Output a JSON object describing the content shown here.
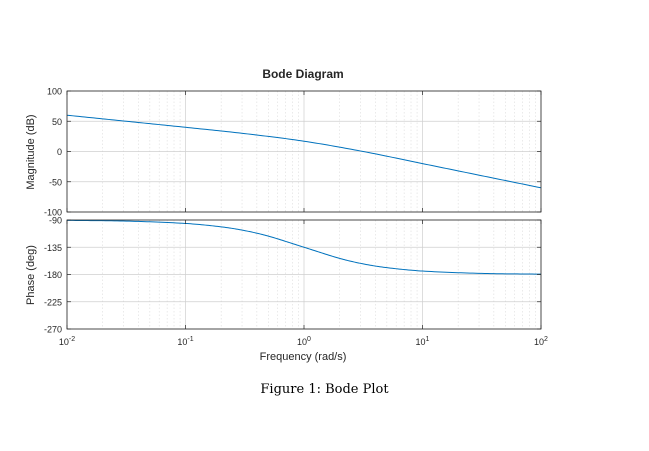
{
  "chart_data": {
    "type": "line",
    "title": "Bode Diagram",
    "xlabel": "Frequency  (rad/s)",
    "x_scale": "log",
    "xlim": [
      0.01,
      100
    ],
    "x_ticks": [
      0.01,
      0.1,
      1,
      10,
      100
    ],
    "x_tick_labels": [
      {
        "base": "10",
        "exp": "-2"
      },
      {
        "base": "10",
        "exp": "-1"
      },
      {
        "base": "10",
        "exp": "0"
      },
      {
        "base": "10",
        "exp": "1"
      },
      {
        "base": "10",
        "exp": "2"
      }
    ],
    "grid": true,
    "line_color": "#0072BD",
    "panels": [
      {
        "ylabel": "Magnitude (dB)",
        "ylim": [
          -100,
          100
        ],
        "y_ticks": [
          100,
          50,
          0,
          -50,
          -100
        ],
        "y_tick_labels": [
          "100",
          "50",
          "0",
          "-50",
          "-100"
        ],
        "x": [
          0.01,
          0.0316,
          0.1,
          0.316,
          1,
          3.16,
          10,
          31.6,
          100
        ],
        "y": [
          60,
          50,
          40,
          29.6,
          17,
          0,
          -20,
          -40,
          -60
        ]
      },
      {
        "ylabel": "Phase (deg)",
        "ylim": [
          -270,
          -90
        ],
        "y_ticks": [
          -90,
          -135,
          -180,
          -225,
          -270
        ],
        "y_tick_labels": [
          "-90",
          "-135",
          "-180",
          "-225",
          "-270"
        ],
        "x": [
          0.01,
          0.0316,
          0.1,
          0.2,
          0.316,
          0.5,
          1,
          2,
          3.16,
          5,
          10,
          31.6,
          100
        ],
        "y": [
          -90.6,
          -91.8,
          -95.7,
          -101.3,
          -107.5,
          -116.6,
          -135,
          -153.4,
          -162.5,
          -168.7,
          -174.3,
          -178.2,
          -179.4
        ]
      }
    ]
  },
  "caption": "Figure 1: Bode Plot"
}
